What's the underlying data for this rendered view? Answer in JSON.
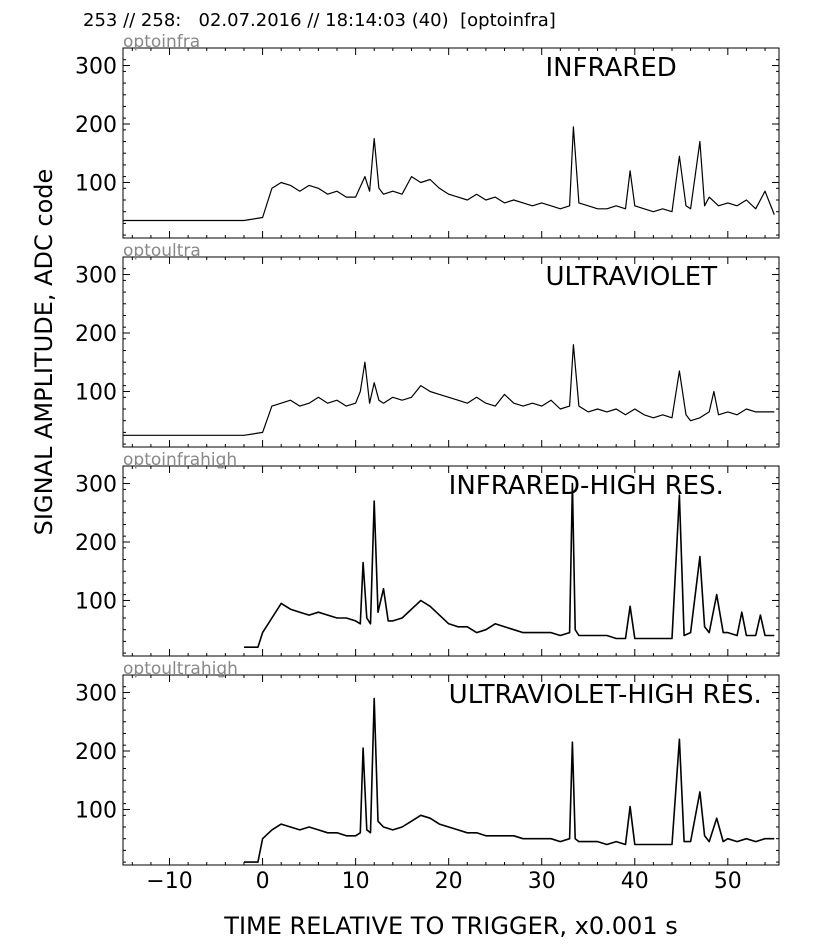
{
  "header": "253 // 258:   02.07.2016 // 18:14:03 (40)  [optoinfra]",
  "xlabel": "TIME RELATIVE TO TRIGGER,   x0.001 s",
  "ylabel": "SIGNAL AMPLITUDE,  ADC code",
  "xlim": [
    -15,
    55.5
  ],
  "ylim": [
    5,
    330
  ],
  "x_ticks": [
    -10,
    0,
    10,
    20,
    30,
    40,
    50
  ],
  "y_ticks": [
    100,
    200,
    300
  ],
  "chart_data": [
    {
      "type": "line",
      "channel": "optoinfra",
      "title": "INFRARED",
      "x": [
        -15,
        -2,
        0,
        1,
        2,
        3,
        4,
        5,
        6,
        7,
        8,
        9,
        10,
        11,
        11.5,
        12,
        12.5,
        13,
        14,
        15,
        16,
        17,
        18,
        19,
        20,
        21,
        22,
        23,
        24,
        25,
        26,
        27,
        28,
        29,
        30,
        31,
        32,
        33,
        33.4,
        34,
        35,
        36,
        37,
        38,
        39,
        39.5,
        40,
        41,
        42,
        43,
        44,
        44.8,
        45.5,
        46,
        47,
        47.5,
        48,
        49,
        50,
        51,
        52,
        53,
        54,
        55
      ],
      "y": [
        35,
        35,
        40,
        90,
        100,
        95,
        85,
        95,
        90,
        80,
        85,
        75,
        75,
        110,
        85,
        175,
        90,
        80,
        85,
        80,
        110,
        100,
        105,
        90,
        80,
        75,
        70,
        80,
        70,
        75,
        65,
        70,
        65,
        60,
        65,
        60,
        55,
        60,
        195,
        65,
        60,
        55,
        55,
        60,
        55,
        120,
        60,
        55,
        50,
        55,
        50,
        145,
        60,
        55,
        170,
        60,
        75,
        60,
        65,
        60,
        70,
        55,
        85,
        45
      ]
    },
    {
      "type": "line",
      "channel": "optoultra",
      "title": "ULTRAVIOLET",
      "x": [
        -15,
        -2,
        0,
        1,
        2,
        3,
        4,
        5,
        6,
        7,
        8,
        9,
        10,
        10.5,
        11,
        11.5,
        12,
        12.5,
        13,
        14,
        15,
        16,
        17,
        18,
        19,
        20,
        21,
        22,
        23,
        24,
        25,
        26,
        27,
        28,
        29,
        30,
        31,
        32,
        33,
        33.4,
        34,
        35,
        36,
        37,
        38,
        39,
        40,
        41,
        42,
        43,
        44,
        44.8,
        45.5,
        46,
        47,
        48,
        48.5,
        49,
        50,
        51,
        52,
        53,
        54,
        55
      ],
      "y": [
        25,
        25,
        30,
        75,
        80,
        85,
        75,
        80,
        90,
        80,
        85,
        75,
        80,
        100,
        150,
        80,
        115,
        85,
        80,
        90,
        85,
        90,
        110,
        100,
        95,
        90,
        85,
        80,
        90,
        80,
        75,
        95,
        80,
        75,
        80,
        75,
        85,
        70,
        75,
        180,
        75,
        65,
        70,
        65,
        70,
        60,
        70,
        60,
        55,
        60,
        55,
        135,
        60,
        50,
        55,
        65,
        100,
        60,
        65,
        60,
        70,
        65,
        65,
        65
      ]
    },
    {
      "type": "line",
      "channel": "optoinfrahigh",
      "title": "INFRARED-HIGH RES.",
      "x": [
        -2,
        -0.5,
        0,
        1,
        2,
        3,
        4,
        5,
        6,
        7,
        8,
        9,
        10,
        10.5,
        10.8,
        11.2,
        11.6,
        12,
        12.4,
        13,
        13.5,
        14,
        15,
        16,
        17,
        18,
        19,
        20,
        21,
        22,
        23,
        24,
        25,
        26,
        27,
        28,
        29,
        30,
        31,
        32,
        33,
        33.3,
        33.6,
        34,
        35,
        36,
        37,
        38,
        39,
        39.5,
        40,
        41,
        42,
        43,
        44,
        44.8,
        45.3,
        46,
        47,
        47.5,
        48,
        48.8,
        49.5,
        50,
        51,
        51.5,
        52,
        53,
        53.5,
        54,
        55
      ],
      "y": [
        20,
        20,
        45,
        70,
        95,
        85,
        80,
        75,
        80,
        75,
        70,
        70,
        65,
        60,
        165,
        70,
        60,
        270,
        80,
        120,
        65,
        65,
        70,
        85,
        100,
        90,
        75,
        60,
        55,
        55,
        45,
        50,
        60,
        55,
        50,
        45,
        45,
        45,
        45,
        40,
        45,
        300,
        50,
        40,
        40,
        40,
        40,
        35,
        35,
        90,
        35,
        35,
        35,
        35,
        35,
        280,
        40,
        45,
        175,
        55,
        45,
        110,
        45,
        45,
        40,
        80,
        40,
        40,
        75,
        40,
        40
      ]
    },
    {
      "type": "line",
      "channel": "optoultrahigh",
      "title": "ULTRAVIOLET-HIGH RES.",
      "x": [
        -2,
        -0.5,
        0,
        1,
        2,
        3,
        4,
        5,
        6,
        7,
        8,
        9,
        10,
        10.5,
        10.8,
        11.2,
        11.6,
        12,
        12.4,
        13,
        14,
        15,
        16,
        17,
        18,
        19,
        20,
        21,
        22,
        23,
        24,
        25,
        26,
        27,
        28,
        29,
        30,
        31,
        32,
        33,
        33.3,
        33.6,
        34,
        35,
        36,
        37,
        38,
        39,
        39.5,
        40,
        41,
        42,
        43,
        44,
        44.8,
        45.3,
        46,
        47,
        47.5,
        48,
        48.8,
        49.5,
        50,
        51,
        52,
        53,
        54,
        55
      ],
      "y": [
        10,
        10,
        50,
        65,
        75,
        70,
        65,
        70,
        65,
        60,
        60,
        55,
        55,
        60,
        205,
        65,
        60,
        290,
        80,
        70,
        65,
        70,
        80,
        90,
        85,
        75,
        70,
        65,
        60,
        60,
        55,
        55,
        55,
        55,
        50,
        50,
        50,
        50,
        45,
        50,
        215,
        50,
        45,
        45,
        45,
        40,
        45,
        40,
        105,
        40,
        40,
        40,
        40,
        40,
        220,
        45,
        45,
        130,
        55,
        45,
        85,
        45,
        50,
        45,
        50,
        45,
        50,
        50
      ]
    }
  ]
}
